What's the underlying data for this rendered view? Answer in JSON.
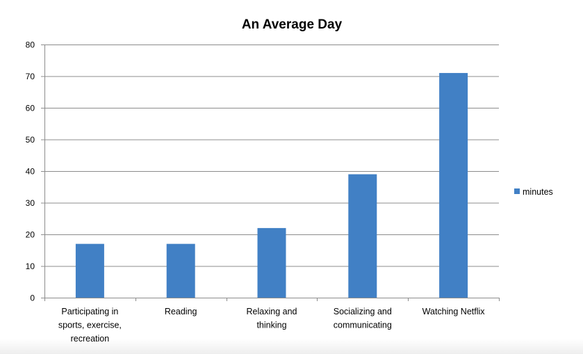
{
  "chart_data": {
    "type": "bar",
    "title": "An Average Day",
    "categories": [
      [
        "Participating in",
        "sports, exercise,",
        "recreation"
      ],
      [
        "Reading"
      ],
      [
        "Relaxing and",
        "thinking"
      ],
      [
        "Socializing and",
        "communicating"
      ],
      [
        "Watching Netflix"
      ]
    ],
    "series": [
      {
        "name": "minutes",
        "values": [
          17,
          17,
          22,
          39,
          71
        ],
        "color": "#4180c5"
      }
    ],
    "xlabel": "",
    "ylabel": "",
    "ylim": [
      0,
      80
    ],
    "yticks": [
      0,
      10,
      20,
      30,
      40,
      50,
      60,
      70,
      80
    ],
    "grid": true,
    "legend_position": "right"
  }
}
